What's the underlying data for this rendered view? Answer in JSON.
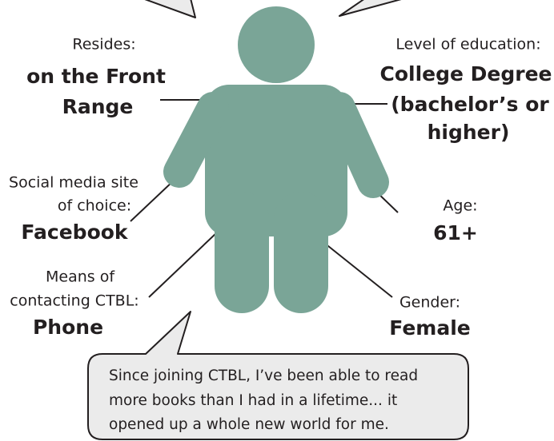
{
  "callouts": [
    {
      "label": [
        "Resides:"
      ],
      "value": [
        "on the Front",
        "Range"
      ]
    },
    {
      "label": [
        "Level of education:"
      ],
      "value": [
        "College Degree",
        "(bachelor’s or",
        "higher)"
      ]
    },
    {
      "label": [
        "Social media site",
        "of choice:"
      ],
      "value": [
        "Facebook"
      ]
    },
    {
      "label": [
        "Age:"
      ],
      "value": [
        "61+"
      ]
    },
    {
      "label": [
        "Means of",
        "contacting CTBL:"
      ],
      "value": [
        "Phone"
      ]
    },
    {
      "label": [
        "Gender:"
      ],
      "value": [
        "Female"
      ]
    }
  ],
  "quote": [
    "Since joining CTBL, I’ve been able to read",
    "more books than I had in a lifetime... it",
    "opened up a whole new world for me."
  ]
}
